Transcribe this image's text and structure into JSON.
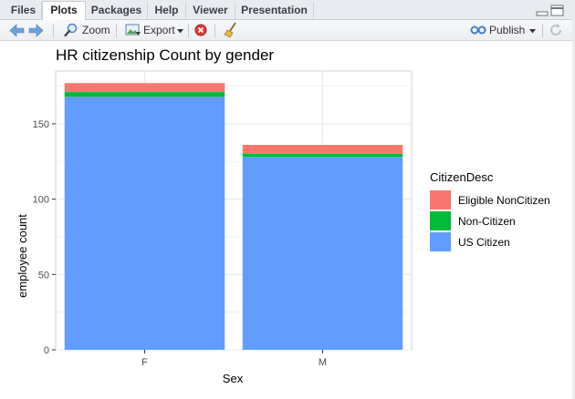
{
  "tabs": [
    {
      "label": "Files",
      "active": false
    },
    {
      "label": "Plots",
      "active": true
    },
    {
      "label": "Packages",
      "active": false
    },
    {
      "label": "Help",
      "active": false
    },
    {
      "label": "Viewer",
      "active": false
    },
    {
      "label": "Presentation",
      "active": false
    }
  ],
  "toolbar": {
    "zoom_label": "Zoom",
    "export_label": "Export",
    "publish_label": "Publish"
  },
  "colors": {
    "eligible": "#F8766D",
    "noncitizen": "#00BA38",
    "uscitizen": "#619CFF",
    "panel_bg": "#FFFFFF",
    "grid": "#EBEBEB"
  },
  "chart_data": {
    "type": "bar",
    "stacked": true,
    "title": "HR citizenship Count by gender",
    "xlabel": "Sex",
    "ylabel": "employee count",
    "categories": [
      "F",
      "M"
    ],
    "ylim": [
      0,
      185
    ],
    "yticks": [
      0,
      50,
      100,
      150
    ],
    "grid": true,
    "legend_title": "CitizenDesc",
    "legend_position": "right",
    "series": [
      {
        "name": "US Citizen",
        "values": [
          168,
          128
        ]
      },
      {
        "name": "Non-Citizen",
        "values": [
          3,
          2
        ]
      },
      {
        "name": "Eligible NonCitizen",
        "values": [
          6,
          6
        ]
      }
    ]
  }
}
